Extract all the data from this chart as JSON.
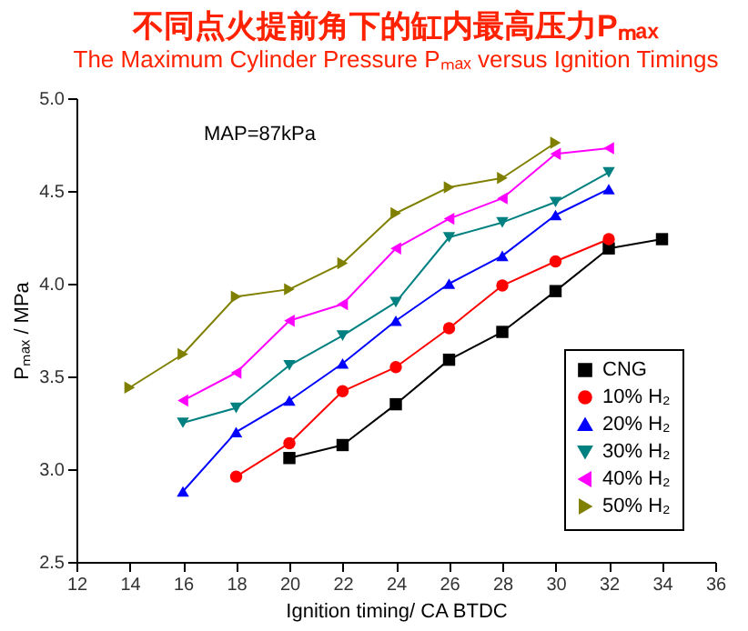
{
  "chart_data": {
    "type": "line",
    "title": "不同点火提前角下的缸内最高压力Pₘₐₓ",
    "subtitle": "The Maximum Cylinder Pressure Pₘₐₓ versus Ignition Timings",
    "xlabel": "Ignition timing/ CA BTDC",
    "ylabel": "Pₘₐₓ / MPa",
    "annotations": [
      "MAP=87kPa"
    ],
    "xlim": [
      12,
      36
    ],
    "xticks": [
      12,
      14,
      16,
      18,
      20,
      22,
      24,
      26,
      28,
      30,
      32,
      34,
      36
    ],
    "ylim": [
      2.5,
      5.0
    ],
    "yticks": [
      {
        "value": 2.5,
        "label": "2.5"
      },
      {
        "value": 3,
        "label": "3.0"
      },
      {
        "value": 3.5,
        "label": "3.5"
      },
      {
        "value": 4,
        "label": "4.0"
      },
      {
        "value": 4.5,
        "label": "4.5"
      },
      {
        "value": 5,
        "label": "5.0"
      }
    ],
    "grid": false,
    "legend": "bottom right",
    "line_style": "solid",
    "series": [
      {
        "name": "CNG",
        "color": "#000000",
        "marker": "square",
        "x": [
          20,
          22,
          24,
          26,
          28,
          30,
          32,
          34
        ],
        "values": [
          3.06,
          3.13,
          3.35,
          3.59,
          3.74,
          3.96,
          4.19,
          4.24
        ]
      },
      {
        "name": "10% H₂",
        "color": "#ff0000",
        "marker": "circle",
        "x": [
          18,
          20,
          22,
          24,
          26,
          28,
          30,
          32
        ],
        "values": [
          2.96,
          3.14,
          3.42,
          3.55,
          3.76,
          3.99,
          4.12,
          4.24
        ]
      },
      {
        "name": "20% H₂",
        "color": "#0000ff",
        "marker": "triangle-up",
        "x": [
          16,
          18,
          20,
          22,
          24,
          26,
          28,
          30,
          32
        ],
        "values": [
          2.88,
          3.2,
          3.37,
          3.57,
          3.8,
          4.0,
          4.15,
          4.37,
          4.51
        ]
      },
      {
        "name": "30% H₂",
        "color": "#008080",
        "marker": "triangle-down",
        "x": [
          16,
          18,
          20,
          22,
          24,
          26,
          28,
          30,
          32
        ],
        "values": [
          3.25,
          3.33,
          3.56,
          3.72,
          3.9,
          4.25,
          4.33,
          4.44,
          4.6
        ]
      },
      {
        "name": "40% H₂",
        "color": "#ff00ff",
        "marker": "triangle-left",
        "x": [
          16,
          18,
          20,
          22,
          24,
          26,
          28,
          30,
          32
        ],
        "values": [
          3.37,
          3.52,
          3.8,
          3.89,
          4.19,
          4.35,
          4.46,
          4.7,
          4.73
        ]
      },
      {
        "name": "50% H₂",
        "color": "#808000",
        "marker": "triangle-right",
        "x": [
          14,
          16,
          18,
          20,
          22,
          24,
          26,
          28,
          30
        ],
        "values": [
          3.44,
          3.62,
          3.93,
          3.97,
          4.11,
          4.38,
          4.52,
          4.57,
          4.76
        ]
      }
    ]
  }
}
